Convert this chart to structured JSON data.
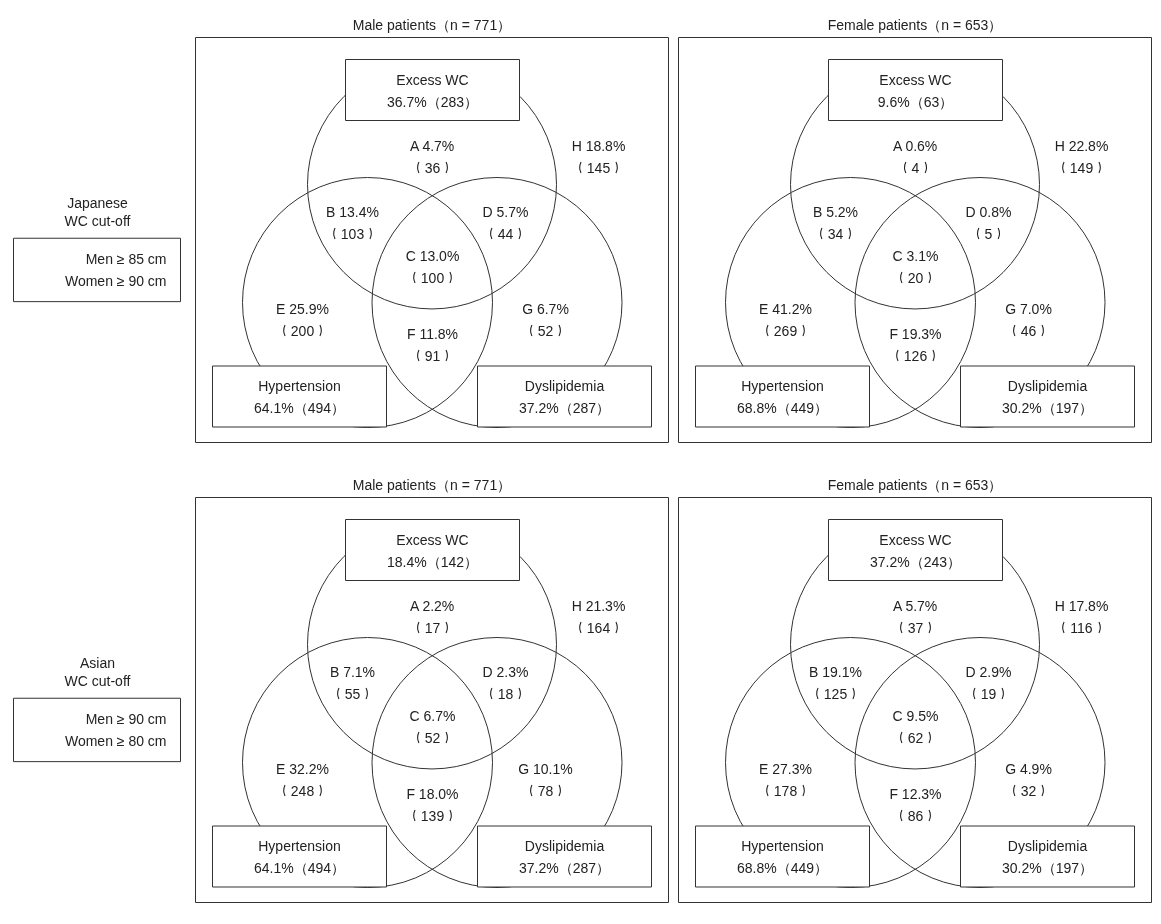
{
  "chart_data": [
    {
      "type": "other",
      "title": "Japanese",
      "subtitle": "WC cut-off",
      "annotations": [
        "Men ≥ 85 cm",
        "Women ≥ 90 cm"
      ]
    },
    {
      "type": "other",
      "title": "Male patients（n = 771）",
      "annotations": [
        "Excess WC",
        "36.7%（283）",
        "Hypertension",
        "64.1%（494）",
        "Dyslipidemia",
        "37.2%（287）"
      ],
      "categories": [
        "A 4.7%",
        "B 13.4%",
        "C 13.0%",
        "D 5.7%",
        "E 25.9%",
        "F 11.8%",
        "G 6.7%",
        "H 18.8%"
      ],
      "values": [
        36,
        103,
        100,
        44,
        200,
        91,
        52,
        145
      ],
      "data_labels": true
    },
    {
      "type": "other",
      "title": "Female patients（n = 653）",
      "annotations": [
        "Excess WC",
        "9.6%（63）",
        "Hypertension",
        "68.8%（449）",
        "Dyslipidemia",
        "30.2%（197）"
      ],
      "categories": [
        "A 0.6%",
        "B 5.2%",
        "C 3.1%",
        "D 0.8%",
        "E 41.2%",
        "F 19.3%",
        "G 7.0%",
        "H 22.8%"
      ],
      "values": [
        4,
        34,
        20,
        5,
        269,
        126,
        46,
        149
      ],
      "data_labels": true
    },
    {
      "type": "other",
      "title": "Asian",
      "subtitle": "WC cut-off",
      "annotations": [
        "Men ≥ 90 cm",
        "Women ≥ 80 cm"
      ]
    },
    {
      "type": "other",
      "title": "Male patients（n = 771）",
      "annotations": [
        "Excess WC",
        "18.4%（142）",
        "Hypertension",
        "64.1%（494）",
        "Dyslipidemia",
        "37.2%（287）"
      ],
      "categories": [
        "A 2.2%",
        "B 7.1%",
        "C 6.7%",
        "D 2.3%",
        "E 32.2%",
        "F 18.0%",
        "G 10.1%",
        "H 21.3%"
      ],
      "values": [
        17,
        55,
        52,
        18,
        248,
        139,
        78,
        164
      ],
      "data_labels": true
    },
    {
      "type": "other",
      "title": "Female patients（n = 653）",
      "annotations": [
        "Excess WC",
        "37.2%（243）",
        "Hypertension",
        "68.8%（449）",
        "Dyslipidemia",
        "30.2%（197）"
      ],
      "categories": [
        "A 5.7%",
        "B 19.1%",
        "C 9.5%",
        "D 2.9%",
        "E 27.3%",
        "F 12.3%",
        "G 4.9%",
        "H 17.8%"
      ],
      "values": [
        37,
        125,
        62,
        19,
        178,
        86,
        32,
        116
      ],
      "data_labels": true
    }
  ]
}
